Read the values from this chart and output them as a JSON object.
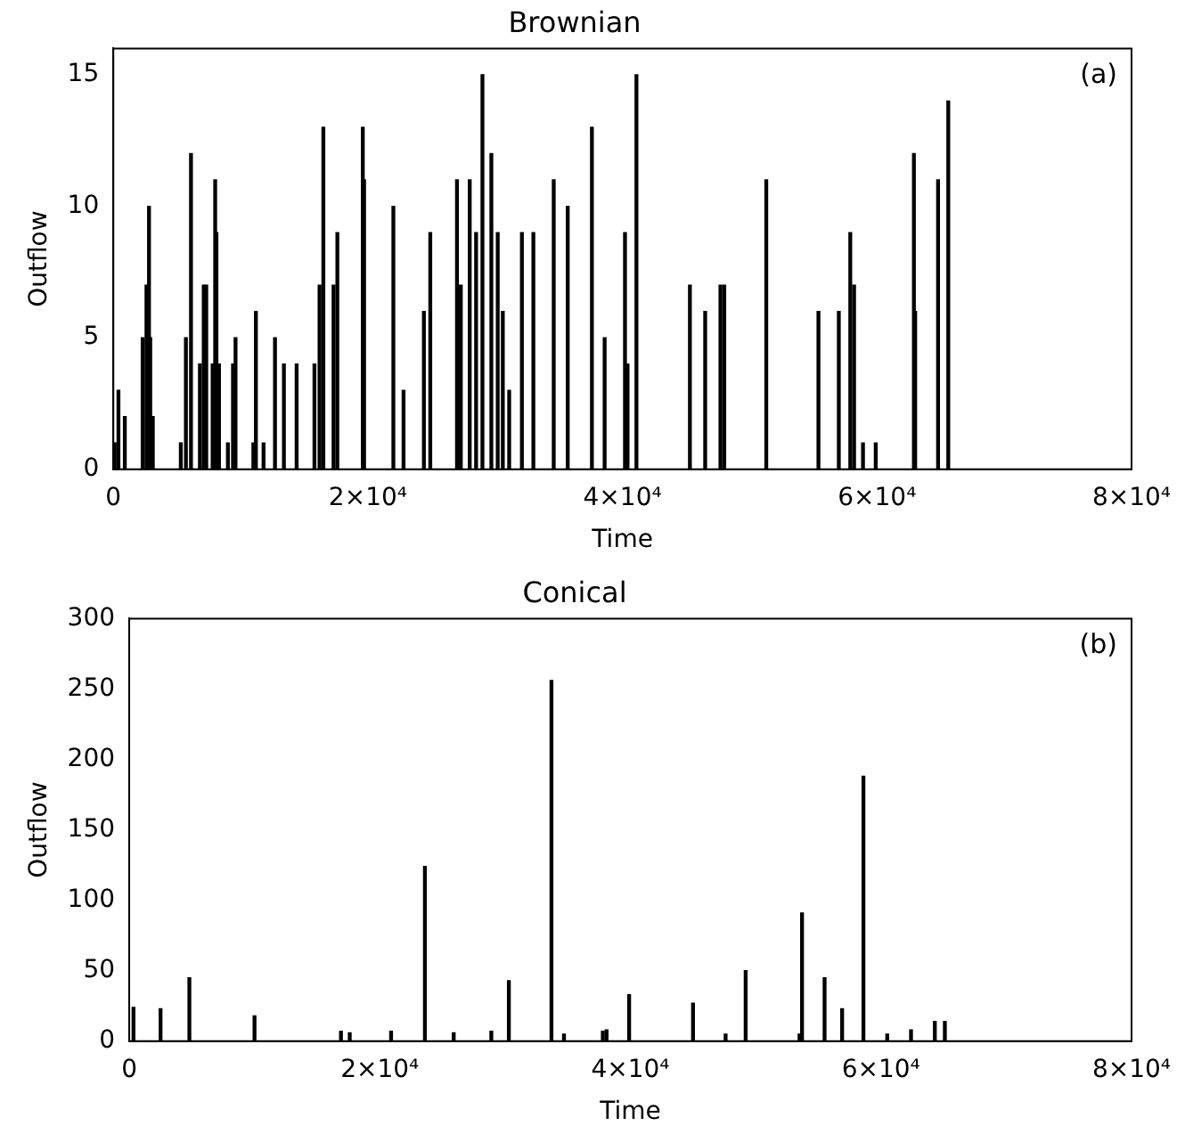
{
  "chart_data": [
    {
      "type": "bar",
      "title": "Brownian",
      "xlabel": "Time",
      "ylabel": "Outflow",
      "annotations": [
        "(a)"
      ],
      "x": [
        100,
        400,
        900,
        2300,
        2600,
        2800,
        2900,
        3100,
        5300,
        5700,
        6100,
        6800,
        7100,
        7300,
        7800,
        8000,
        8100,
        8300,
        9000,
        9400,
        9600,
        11000,
        11200,
        11800,
        12700,
        13400,
        14400,
        15800,
        16200,
        16500,
        17300,
        17600,
        19600,
        19700,
        22000,
        22800,
        24400,
        24900,
        27000,
        27300,
        28000,
        28500,
        29000,
        29700,
        30200,
        30600,
        31100,
        32100,
        33000,
        34600,
        35700,
        37600,
        38600,
        40200,
        40400,
        41100,
        45300,
        46500,
        47700,
        48000,
        51300,
        55400,
        57000,
        57900,
        58200,
        58900,
        59900,
        62900,
        63000,
        64800,
        65600
      ],
      "series": [
        {
          "color": "#000000",
          "values": [
            1,
            3,
            2,
            5,
            7,
            10,
            5,
            2,
            1,
            5,
            12,
            4,
            7,
            7,
            4,
            11,
            9,
            4,
            1,
            4,
            5,
            1,
            6,
            1,
            5,
            4,
            4,
            4,
            7,
            13,
            7,
            9,
            13,
            11,
            10,
            3,
            6,
            9,
            11,
            7,
            11,
            9,
            15,
            12,
            9,
            6,
            3,
            9,
            9,
            11,
            10,
            13,
            5,
            9,
            4,
            15,
            7,
            6,
            7,
            7,
            11,
            6,
            6,
            9,
            7,
            1,
            1,
            12,
            6,
            11,
            14
          ]
        }
      ],
      "xlim": [
        0,
        80000
      ],
      "xticks": [
        0,
        {
          "value": 20000,
          "label": "2×10⁴"
        },
        {
          "value": 40000,
          "label": "4×10⁴"
        },
        {
          "value": 60000,
          "label": "6×10⁴"
        },
        {
          "value": 80000,
          "label": "8×10⁴"
        }
      ],
      "ylim": [
        0,
        16
      ],
      "yticks": [
        0,
        5,
        10,
        15
      ]
    },
    {
      "type": "bar",
      "title": "Conical",
      "xlabel": "Time",
      "ylabel": "Outflow",
      "annotations": [
        "(b)"
      ],
      "x": [
        340,
        2500,
        4800,
        10000,
        16900,
        17600,
        20900,
        23600,
        25900,
        28900,
        30300,
        33700,
        34700,
        37800,
        38100,
        39900,
        45000,
        47600,
        49200,
        53500,
        53700,
        55500,
        56900,
        58600,
        60500,
        62400,
        64300,
        65100
      ],
      "series": [
        {
          "color": "#000000",
          "values": [
            24,
            23,
            45,
            18,
            7,
            6,
            7,
            124,
            6,
            7,
            43,
            256,
            5,
            7,
            8,
            33,
            27,
            5,
            50,
            5,
            91,
            45,
            23,
            188,
            5,
            8,
            14,
            14
          ]
        }
      ],
      "xlim": [
        0,
        80000
      ],
      "xticks": [
        0,
        {
          "value": 20000,
          "label": "2×10⁴"
        },
        {
          "value": 40000,
          "label": "4×10⁴"
        },
        {
          "value": 60000,
          "label": "6×10⁴"
        },
        {
          "value": 80000,
          "label": "8×10⁴"
        }
      ],
      "ylim": [
        0,
        300
      ],
      "yticks": [
        0,
        50,
        100,
        150,
        200,
        250,
        300
      ]
    }
  ]
}
